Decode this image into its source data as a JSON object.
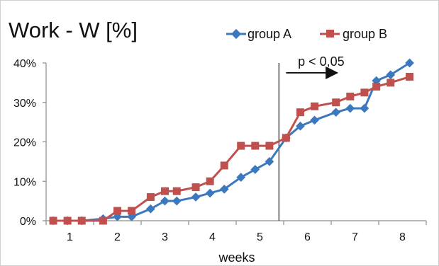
{
  "chart_data": {
    "type": "line",
    "title": "Work - W [%]",
    "xlabel": "weeks",
    "ylabel": "",
    "ylim": [
      0,
      40
    ],
    "xlim": [
      0.5,
      8.5
    ],
    "grid": false,
    "legend_position": "top-right",
    "y_ticks": [
      "0%",
      "10%",
      "20%",
      "30%",
      "40%"
    ],
    "x_ticks": [
      "1",
      "2",
      "3",
      "4",
      "5",
      "6",
      "7",
      "8"
    ],
    "series": [
      {
        "name": "group A",
        "color": "#3b78be",
        "marker": "diamond",
        "x": [
          0.65,
          0.95,
          1.25,
          1.7,
          2.0,
          2.3,
          2.7,
          3.0,
          3.25,
          3.65,
          3.95,
          4.25,
          4.6,
          4.9,
          5.2,
          5.55,
          5.85,
          6.15,
          6.6,
          6.9,
          7.2,
          7.45,
          7.75,
          8.15
        ],
        "y": [
          0,
          0,
          0,
          0.5,
          1,
          1,
          3,
          5,
          5,
          6,
          7,
          8,
          11,
          13,
          15,
          21,
          24,
          25.5,
          27.5,
          28.5,
          28.5,
          35.5,
          37,
          40
        ]
      },
      {
        "name": "group B",
        "color": "#c0504d",
        "marker": "square",
        "x": [
          0.65,
          0.95,
          1.25,
          1.7,
          2.0,
          2.3,
          2.7,
          3.0,
          3.25,
          3.65,
          3.95,
          4.25,
          4.6,
          4.9,
          5.2,
          5.55,
          5.85,
          6.15,
          6.6,
          6.9,
          7.2,
          7.45,
          7.75,
          8.15
        ],
        "y": [
          0,
          0,
          0,
          0,
          2.5,
          2.5,
          6,
          7.5,
          7.5,
          8.5,
          10,
          14,
          19,
          19,
          19,
          21,
          27.5,
          29,
          30,
          31.5,
          32.5,
          34,
          35,
          36.5
        ]
      }
    ],
    "annotations": [
      {
        "text": "p < 0,05",
        "x_start": 5.55,
        "x_end": 6.0,
        "y": 37.5
      }
    ],
    "reference_line_x": 5.4
  }
}
